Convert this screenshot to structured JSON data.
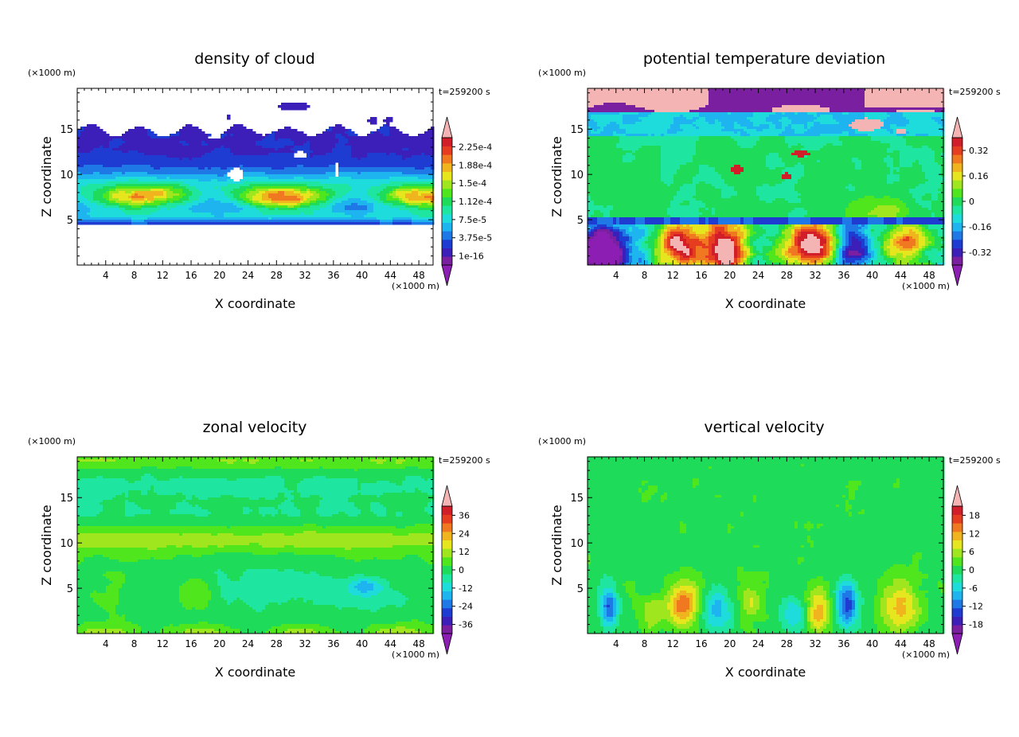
{
  "figure": {
    "x_unit": "(×1000 m)",
    "z_unit": "(×1000 m)",
    "time_label": "t=259200 s",
    "xlabel": "X coordinate",
    "ylabel": "Z coordinate"
  },
  "chart_data": [
    {
      "type": "heatmap",
      "title": "density of cloud",
      "xlabel": "X coordinate",
      "ylabel": "Z coordinate",
      "x_unit": "(×1000 m)",
      "y_unit": "(×1000 m)",
      "annotation": "t=259200 s",
      "xlim": [
        0,
        50
      ],
      "ylim": [
        0,
        19.5
      ],
      "x_ticks": [
        4,
        8,
        12,
        16,
        20,
        24,
        28,
        32,
        36,
        40,
        44,
        48
      ],
      "y_ticks": [
        5,
        10,
        15
      ],
      "colorbar_labels": [
        "1e-16",
        "3.75e-5",
        "7.5e-5",
        "1.12e-4",
        "1.5e-4",
        "1.88e-4",
        "2.25e-4"
      ],
      "field": "cloud",
      "layers": [
        {
          "z": [
            4.6,
            15.2
          ],
          "value": "low"
        },
        {
          "z": [
            6.0,
            8.8
          ],
          "value": "mid"
        }
      ]
    },
    {
      "type": "heatmap",
      "title": "potential temperature deviation",
      "xlabel": "X coordinate",
      "ylabel": "Z coordinate",
      "x_unit": "(×1000 m)",
      "y_unit": "(×1000 m)",
      "annotation": "t=259200 s",
      "xlim": [
        0,
        50
      ],
      "ylim": [
        0,
        19.5
      ],
      "x_ticks": [
        4,
        8,
        12,
        16,
        20,
        24,
        28,
        32,
        36,
        40,
        44,
        48
      ],
      "y_ticks": [
        5,
        10,
        15
      ],
      "colorbar_labels": [
        "-0.32",
        "-0.16",
        "0",
        "0.16",
        "0.32"
      ],
      "field": "theta"
    },
    {
      "type": "heatmap",
      "title": "zonal velocity",
      "xlabel": "X coordinate",
      "ylabel": "Z coordinate",
      "x_unit": "(×1000 m)",
      "y_unit": "(×1000 m)",
      "annotation": "t=259200 s",
      "xlim": [
        0,
        50
      ],
      "ylim": [
        0,
        19.5
      ],
      "x_ticks": [
        4,
        8,
        12,
        16,
        20,
        24,
        28,
        32,
        36,
        40,
        44,
        48
      ],
      "y_ticks": [
        5,
        10,
        15
      ],
      "colorbar_labels": [
        "-36",
        "-24",
        "-12",
        "0",
        "12",
        "24",
        "36"
      ],
      "field": "u"
    },
    {
      "type": "heatmap",
      "title": "vertical velocity",
      "xlabel": "X coordinate",
      "ylabel": "Z coordinate",
      "x_unit": "(×1000 m)",
      "y_unit": "(×1000 m)",
      "annotation": "t=259200 s",
      "xlim": [
        0,
        50
      ],
      "ylim": [
        0,
        19.5
      ],
      "x_ticks": [
        4,
        8,
        12,
        16,
        20,
        24,
        28,
        32,
        36,
        40,
        44,
        48
      ],
      "y_ticks": [
        5,
        10,
        15
      ],
      "colorbar_labels": [
        "-18",
        "-12",
        "-6",
        "0",
        "6",
        "12",
        "18"
      ],
      "field": "w"
    }
  ],
  "colors": {
    "scale": [
      "#7a1fa0",
      "#3c1fb8",
      "#1e3cd2",
      "#1e78e6",
      "#1eb4f0",
      "#1edcdc",
      "#1ee6a0",
      "#1edc5a",
      "#50e61e",
      "#a0e61e",
      "#e6e61e",
      "#f0b41e",
      "#f07820",
      "#e63c20",
      "#d21e28"
    ],
    "over": "#f5b4b4",
    "under": "#8c1eb4"
  }
}
